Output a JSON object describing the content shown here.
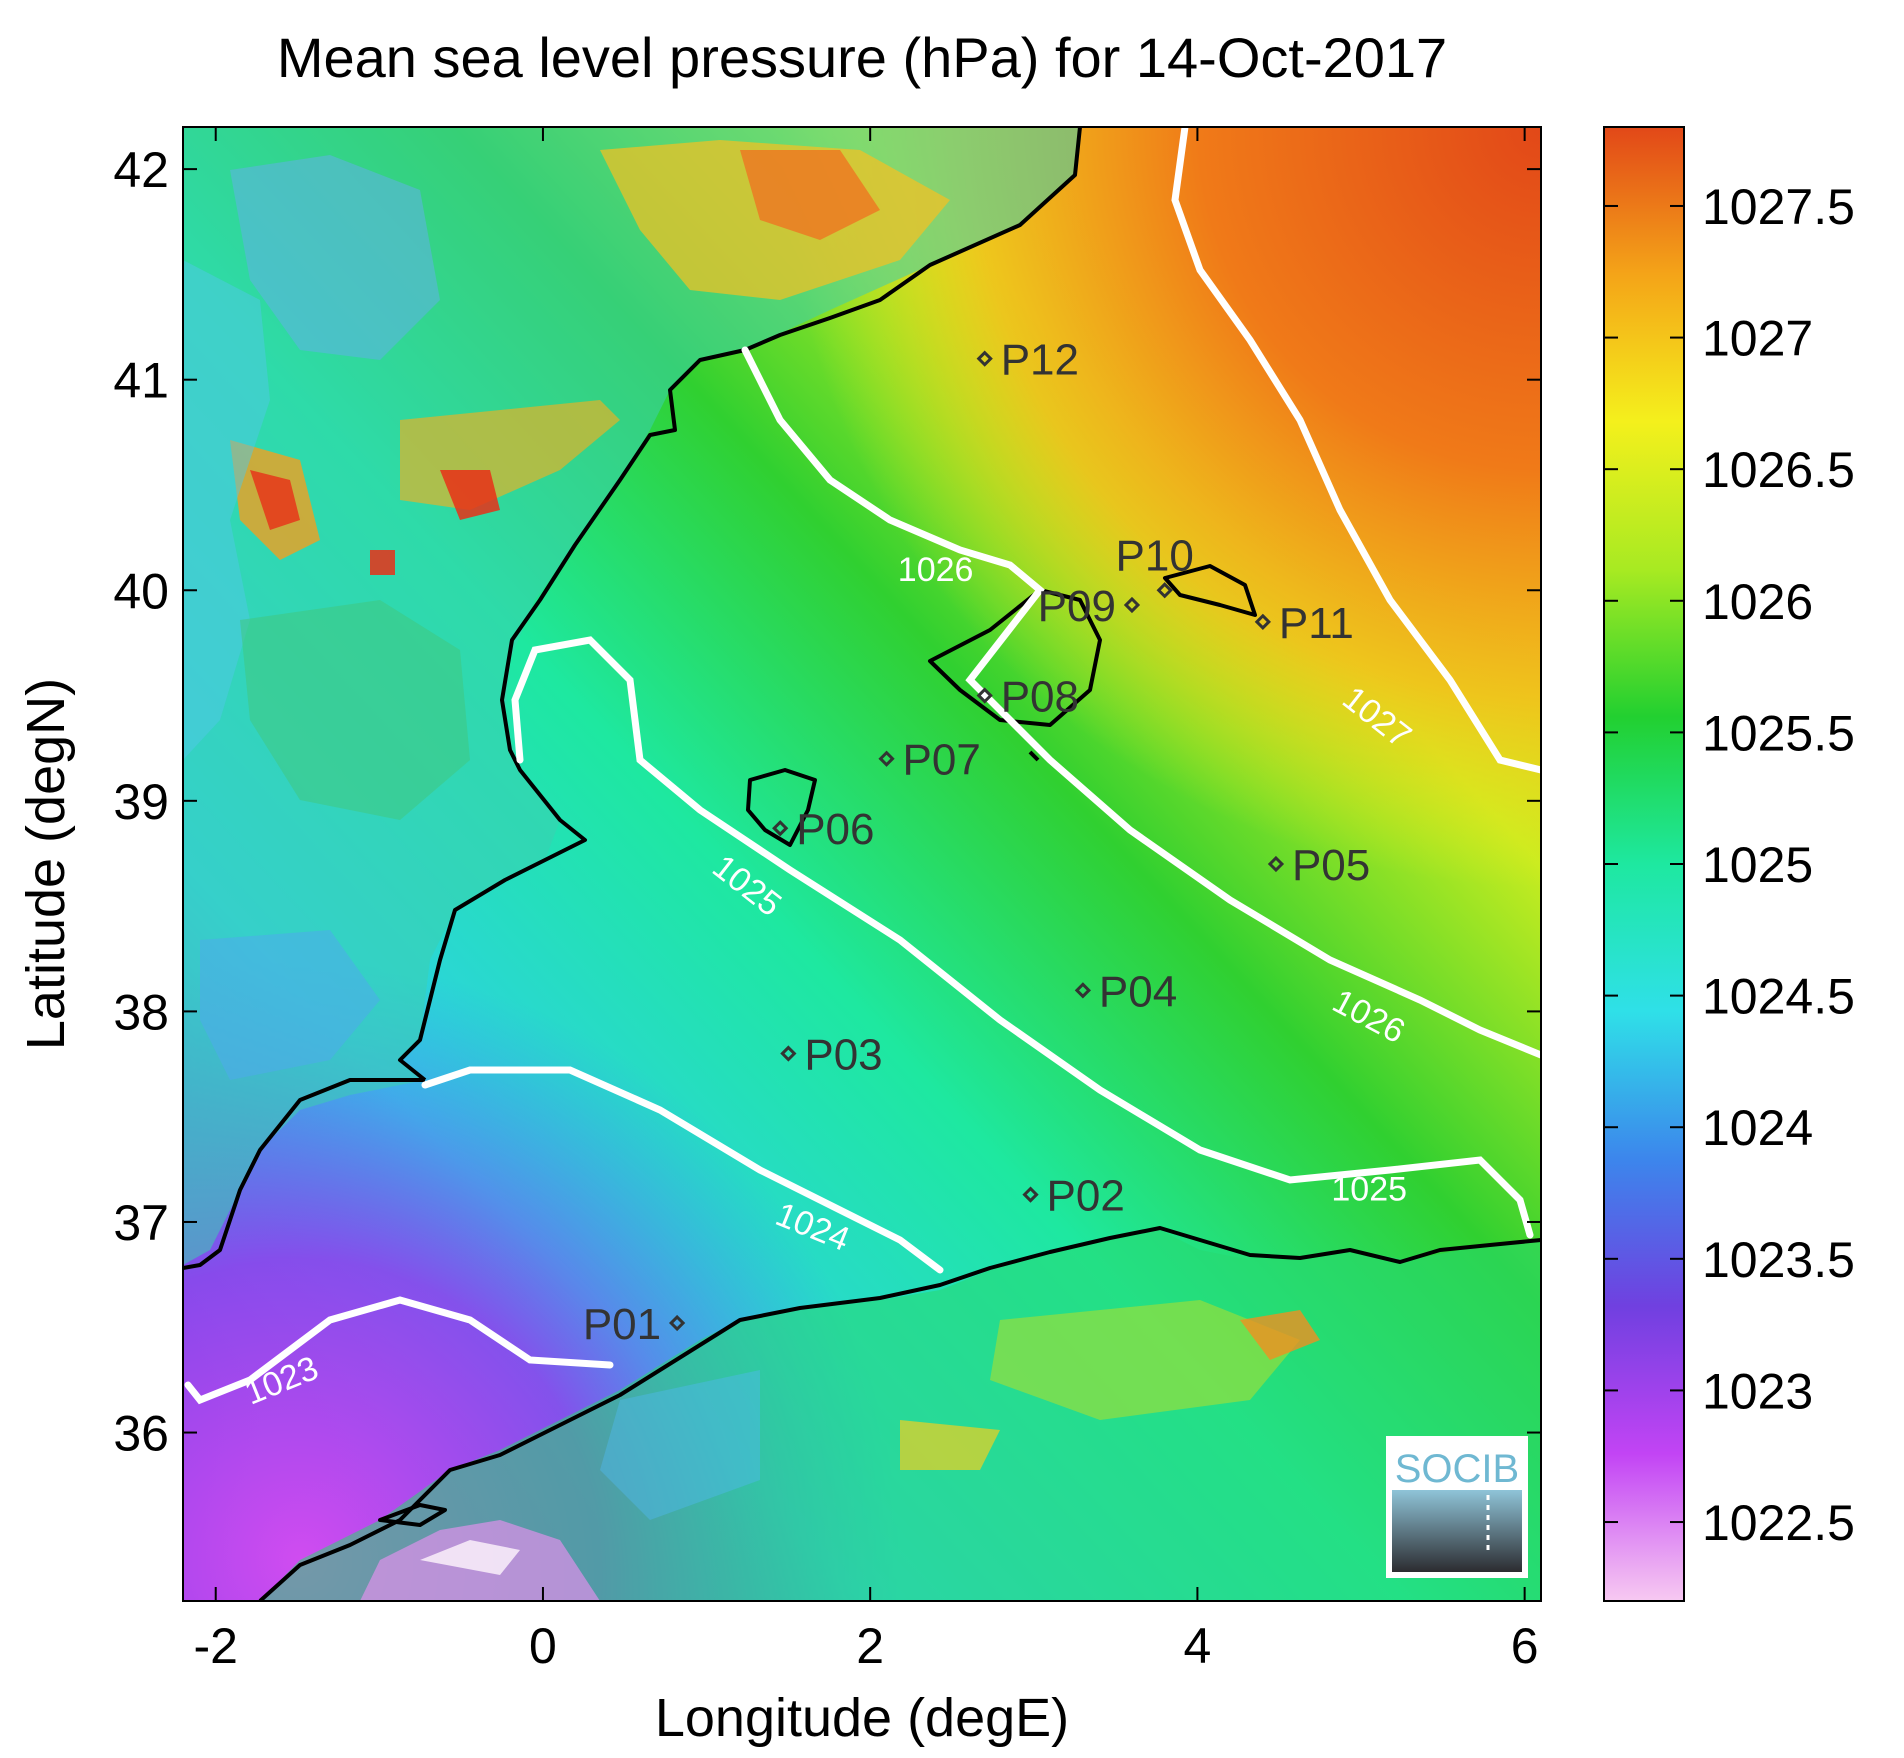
{
  "title": "Mean sea level pressure (hPa) for 14-Oct-2017",
  "xlabel": "Longitude (degE)",
  "ylabel": "Latitude (degN)",
  "logo_text": "SOCIB",
  "x_range": [
    -2.2,
    6.1
  ],
  "y_range": [
    35.2,
    42.2
  ],
  "x_ticks": [
    {
      "value": -2,
      "label": "-2"
    },
    {
      "value": 0,
      "label": "0"
    },
    {
      "value": 2,
      "label": "2"
    },
    {
      "value": 4,
      "label": "4"
    },
    {
      "value": 6,
      "label": "6"
    }
  ],
  "y_ticks": [
    {
      "value": 36,
      "label": "36"
    },
    {
      "value": 37,
      "label": "37"
    },
    {
      "value": 38,
      "label": "38"
    },
    {
      "value": 39,
      "label": "39"
    },
    {
      "value": 40,
      "label": "40"
    },
    {
      "value": 41,
      "label": "41"
    },
    {
      "value": 42,
      "label": "42"
    }
  ],
  "colorbar": {
    "range": [
      1022.2,
      1027.8
    ],
    "ticks": [
      {
        "value": 1022.5,
        "label": "1022.5"
      },
      {
        "value": 1023,
        "label": "1023"
      },
      {
        "value": 1023.5,
        "label": "1023.5"
      },
      {
        "value": 1024,
        "label": "1024"
      },
      {
        "value": 1024.5,
        "label": "1024.5"
      },
      {
        "value": 1025,
        "label": "1025"
      },
      {
        "value": 1025.5,
        "label": "1025.5"
      },
      {
        "value": 1026,
        "label": "1026"
      },
      {
        "value": 1026.5,
        "label": "1026.5"
      },
      {
        "value": 1027,
        "label": "1027"
      },
      {
        "value": 1027.5,
        "label": "1027.5"
      }
    ],
    "colors": [
      "#f7c9f2",
      "#c244f4",
      "#7040e0",
      "#3c86ec",
      "#2fe0e8",
      "#1ee8a0",
      "#22d030",
      "#a8ea22",
      "#f4f01c",
      "#f4a418",
      "#e24818"
    ]
  },
  "stations": [
    {
      "name": "P01",
      "lon": 0.82,
      "lat": 36.52,
      "label_side": "left"
    },
    {
      "name": "P02",
      "lon": 2.98,
      "lat": 37.13,
      "label_side": "right"
    },
    {
      "name": "P03",
      "lon": 1.5,
      "lat": 37.8,
      "label_side": "right"
    },
    {
      "name": "P04",
      "lon": 3.3,
      "lat": 38.1,
      "label_side": "right"
    },
    {
      "name": "P05",
      "lon": 4.48,
      "lat": 38.7,
      "label_side": "right"
    },
    {
      "name": "P06",
      "lon": 1.45,
      "lat": 38.87,
      "label_side": "right"
    },
    {
      "name": "P07",
      "lon": 2.1,
      "lat": 39.2,
      "label_side": "right"
    },
    {
      "name": "P08",
      "lon": 2.7,
      "lat": 39.5,
      "label_side": "right"
    },
    {
      "name": "P09",
      "lon": 3.6,
      "lat": 39.93,
      "label_side": "left"
    },
    {
      "name": "P10",
      "lon": 3.8,
      "lat": 40.0,
      "label_side": "above"
    },
    {
      "name": "P11",
      "lon": 4.4,
      "lat": 39.85,
      "label_side": "right"
    },
    {
      "name": "P12",
      "lon": 2.7,
      "lat": 41.1,
      "label_side": "right"
    }
  ],
  "contour_labels": [
    {
      "text": "1023",
      "lon": -1.6,
      "lat": 36.25,
      "angle": -22
    },
    {
      "text": "1024",
      "lon": 1.65,
      "lat": 36.98,
      "angle": 22
    },
    {
      "text": "1025",
      "lon": 1.25,
      "lat": 38.6,
      "angle": 38
    },
    {
      "text": "1025",
      "lon": 5.05,
      "lat": 37.16,
      "angle": 0
    },
    {
      "text": "1026",
      "lon": 2.4,
      "lat": 40.1,
      "angle": 0
    },
    {
      "text": "1026",
      "lon": 5.05,
      "lat": 37.98,
      "angle": 28
    },
    {
      "text": "1027",
      "lon": 5.1,
      "lat": 39.4,
      "angle": 38
    }
  ]
}
